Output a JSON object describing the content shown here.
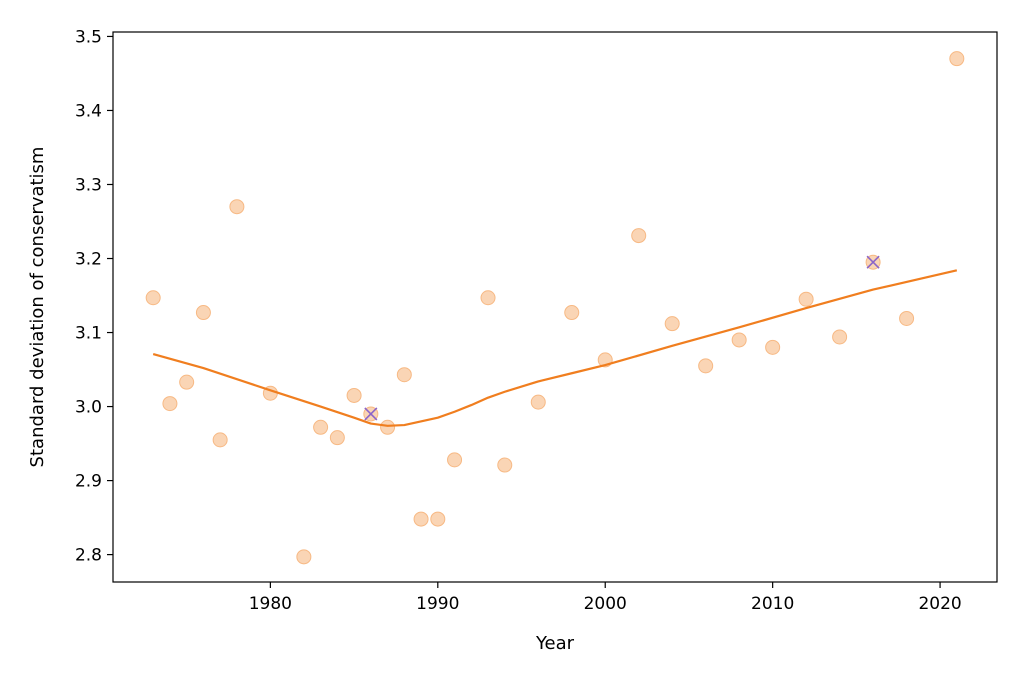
{
  "chart_data": {
    "type": "scatter",
    "title": "",
    "xlabel": "Year",
    "ylabel": "Standard deviation of conservatism",
    "xlim": [
      1970.6,
      2023.4
    ],
    "ylim": [
      2.763,
      3.506
    ],
    "xticks": [
      1980,
      1990,
      2000,
      2010,
      2020
    ],
    "yticks": [
      2.8,
      2.9,
      3.0,
      3.1,
      3.2,
      3.3,
      3.4,
      3.5
    ],
    "grid": false,
    "legend": "none",
    "series": [
      {
        "kind": "points",
        "color": "#f7b984",
        "points": [
          [
            1973,
            3.147
          ],
          [
            1974,
            3.004
          ],
          [
            1975,
            3.033
          ],
          [
            1976,
            3.127
          ],
          [
            1977,
            2.955
          ],
          [
            1978,
            3.27
          ],
          [
            1980,
            3.018
          ],
          [
            1982,
            2.797
          ],
          [
            1983,
            2.972
          ],
          [
            1984,
            2.958
          ],
          [
            1985,
            3.015
          ],
          [
            1986,
            2.99
          ],
          [
            1987,
            2.972
          ],
          [
            1988,
            3.043
          ],
          [
            1989,
            2.848
          ],
          [
            1990,
            2.848
          ],
          [
            1991,
            2.928
          ],
          [
            1993,
            3.147
          ],
          [
            1994,
            2.921
          ],
          [
            1996,
            3.006
          ],
          [
            1998,
            3.127
          ],
          [
            2000,
            3.063
          ],
          [
            2002,
            3.231
          ],
          [
            2004,
            3.112
          ],
          [
            2006,
            3.055
          ],
          [
            2008,
            3.09
          ],
          [
            2010,
            3.08
          ],
          [
            2012,
            3.145
          ],
          [
            2014,
            3.094
          ],
          [
            2016,
            3.195
          ],
          [
            2018,
            3.119
          ],
          [
            2021,
            3.47
          ]
        ]
      },
      {
        "kind": "line",
        "color": "#f07e1f",
        "points": [
          [
            1973,
            3.071
          ],
          [
            1976,
            3.052
          ],
          [
            1980,
            3.022
          ],
          [
            1983,
            3.0
          ],
          [
            1985,
            2.985
          ],
          [
            1986,
            2.977
          ],
          [
            1987,
            2.974
          ],
          [
            1988,
            2.975
          ],
          [
            1990,
            2.985
          ],
          [
            1991,
            2.993
          ],
          [
            1992,
            3.002
          ],
          [
            1993,
            3.012
          ],
          [
            1994,
            3.02
          ],
          [
            1996,
            3.034
          ],
          [
            1998,
            3.045
          ],
          [
            2000,
            3.056
          ],
          [
            2004,
            3.082
          ],
          [
            2008,
            3.107
          ],
          [
            2012,
            3.133
          ],
          [
            2016,
            3.158
          ],
          [
            2021,
            3.184
          ]
        ]
      },
      {
        "kind": "markers",
        "marker": "x",
        "color": "#8c65c9",
        "points": [
          [
            1986,
            2.99
          ],
          [
            2016,
            3.195
          ]
        ]
      }
    ]
  }
}
